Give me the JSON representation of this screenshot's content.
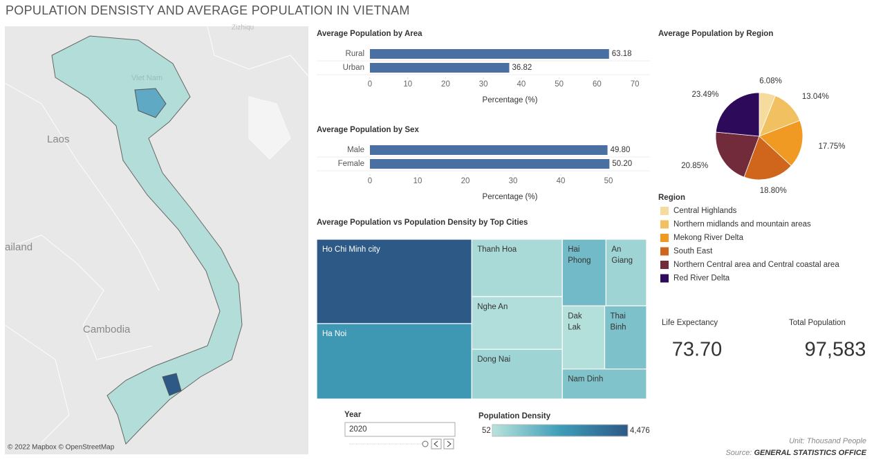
{
  "title": "POPULATION DENSISTY AND AVERAGE POPULATION IN VIETNAM",
  "map": {
    "labels": [
      "Zizhiqu",
      "Viet Nam",
      "Laos",
      "ailand",
      "Cambodia"
    ],
    "attribution": "© 2022 Mapbox © OpenStreetMap"
  },
  "chart_data": [
    {
      "type": "bar",
      "orientation": "horizontal",
      "title": "Average Population by Area",
      "categories": [
        "Rural",
        "Urban"
      ],
      "values": [
        63.18,
        36.82
      ],
      "color": "#4a70a3",
      "xlim": [
        0,
        74
      ],
      "xticks": [
        0,
        10,
        20,
        30,
        40,
        50,
        60,
        70
      ],
      "xlabel": "Percentage (%)"
    },
    {
      "type": "bar",
      "orientation": "horizontal",
      "title": "Average Population by Sex",
      "categories": [
        "Male",
        "Female"
      ],
      "values": [
        49.8,
        50.2
      ],
      "value_labels": [
        "49.80",
        "50.20"
      ],
      "color": "#4a70a3",
      "xlim": [
        0,
        58.7
      ],
      "xticks": [
        0,
        10,
        20,
        30,
        40,
        50
      ],
      "xlabel": "Percentage (%)"
    },
    {
      "type": "pie",
      "title": "Average Population by Region",
      "legend_title": "Region",
      "categories": [
        "Central Highlands",
        "Northern midlands and mountain areas",
        "Mekong River Delta",
        "South East",
        "Northern Central area and Central coastal area",
        "Red River Delta"
      ],
      "values": [
        6.08,
        13.04,
        17.75,
        18.8,
        20.85,
        23.49
      ],
      "value_labels": [
        "6.08%",
        "13.04%",
        "17.75%",
        "18.80%",
        "20.85%",
        "23.49%"
      ],
      "colors": [
        "#f5dc9e",
        "#f1c060",
        "#f09a24",
        "#d0661c",
        "#722b3b",
        "#2e0b5a"
      ]
    },
    {
      "type": "treemap",
      "title": "Average Population vs Population Density by Top Cities",
      "categories": [
        "Ho Chi Minh city",
        "Ha Noi",
        "Thanh Hoa",
        "Nghe An",
        "Dong Nai",
        "Hai Phong",
        "An Giang",
        "Dak Lak",
        "Thai Binh",
        "Nam Dinh"
      ],
      "values": [
        9227,
        8247,
        3664,
        3365,
        3177,
        2053,
        1905,
        1887,
        1862,
        1780
      ],
      "color_values": [
        4476,
        2430,
        330,
        204,
        541,
        1346,
        540,
        143,
        1138,
        1072
      ]
    }
  ],
  "filters": {
    "year_label": "Year",
    "year": "2020"
  },
  "density_legend": {
    "title": "Population Density",
    "min": 52,
    "max": {
      "value": 4476,
      "label": "4,476"
    },
    "colors": [
      "#b9e3dc",
      "#3f9db8",
      "#2c5985"
    ]
  },
  "kpis": [
    {
      "label": "Life Expectancy",
      "value": 73.7,
      "value_label": "73.70"
    },
    {
      "label": "Total Population",
      "value": 97583,
      "value_label": "97,583"
    }
  ],
  "footer": {
    "unit": "Unit: Thousand People",
    "source_prefix": "Source:",
    "source": "GENERAL STATISTICS OFFICE"
  }
}
